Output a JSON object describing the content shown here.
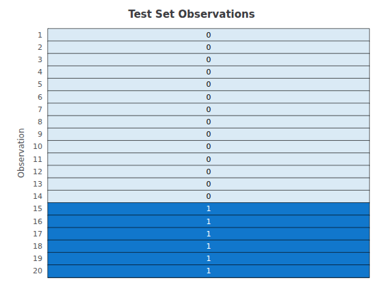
{
  "chart_data": {
    "type": "heatmap",
    "title": "Test Set Observations",
    "ylabel": "Observation",
    "categories": [
      "1",
      "2",
      "3",
      "4",
      "5",
      "6",
      "7",
      "8",
      "9",
      "10",
      "11",
      "12",
      "13",
      "14",
      "15",
      "16",
      "17",
      "18",
      "19",
      "20"
    ],
    "values": [
      0,
      0,
      0,
      0,
      0,
      0,
      0,
      0,
      0,
      0,
      0,
      0,
      0,
      0,
      1,
      1,
      1,
      1,
      1,
      1
    ],
    "colors": [
      "#daeaf5",
      "#daeaf5",
      "#daeaf5",
      "#daeaf5",
      "#daeaf5",
      "#daeaf5",
      "#daeaf5",
      "#daeaf5",
      "#daeaf5",
      "#daeaf5",
      "#daeaf5",
      "#daeaf5",
      "#daeaf5",
      "#daeaf5",
      "#1177cc",
      "#1177cc",
      "#1177cc",
      "#1177cc",
      "#1177cc",
      "#1177cc"
    ],
    "data_labels": true,
    "tick_labels": "y",
    "grid": false
  }
}
